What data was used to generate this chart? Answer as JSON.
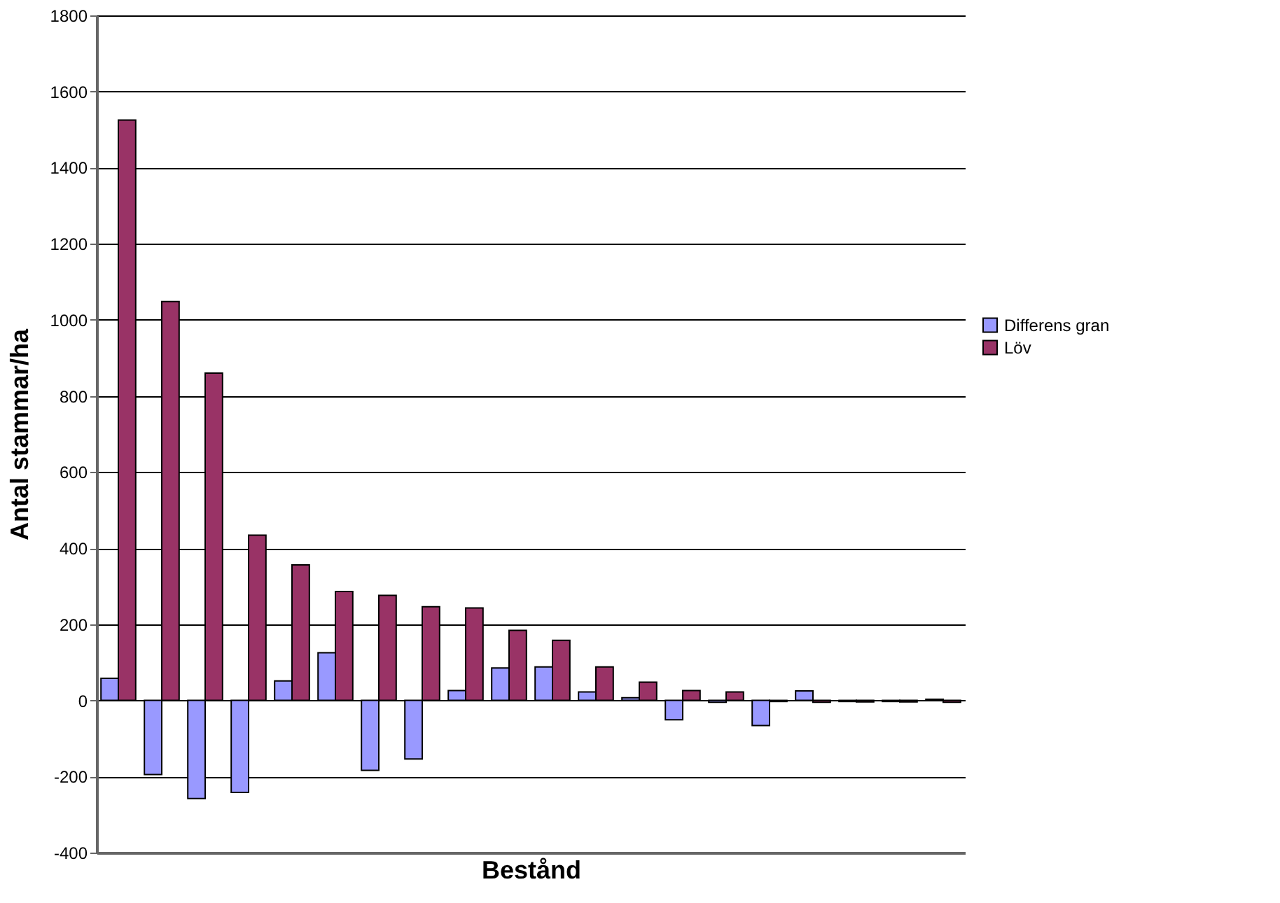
{
  "chart_data": {
    "type": "bar",
    "xlabel": "Bestånd",
    "ylabel": "Antal stammar/ha",
    "categories": [
      null,
      null,
      null,
      null,
      null,
      null,
      null,
      null,
      null,
      null,
      null,
      null,
      null,
      null,
      null,
      null,
      null,
      null,
      null,
      null
    ],
    "series": [
      {
        "name": "Differens gran",
        "color": "#9999ff",
        "values": [
          58,
          -195,
          -258,
          -242,
          51,
          125,
          -184,
          -154,
          26,
          85,
          88,
          22,
          7,
          -51,
          -5,
          -66,
          25,
          -3,
          -3,
          3
        ]
      },
      {
        "name": "Löv",
        "color": "#993366",
        "values": [
          1525,
          1048,
          860,
          434,
          356,
          286,
          276,
          246,
          243,
          184,
          158,
          88,
          48,
          26,
          22,
          -3,
          -5,
          -4,
          -4,
          -5
        ]
      }
    ],
    "ylim": [
      -400,
      1800
    ],
    "yticks": [
      -400,
      -200,
      0,
      200,
      400,
      600,
      800,
      1000,
      1200,
      1400,
      1600,
      1800
    ],
    "grid": "y",
    "legend": "right",
    "tick_labels": "y"
  }
}
